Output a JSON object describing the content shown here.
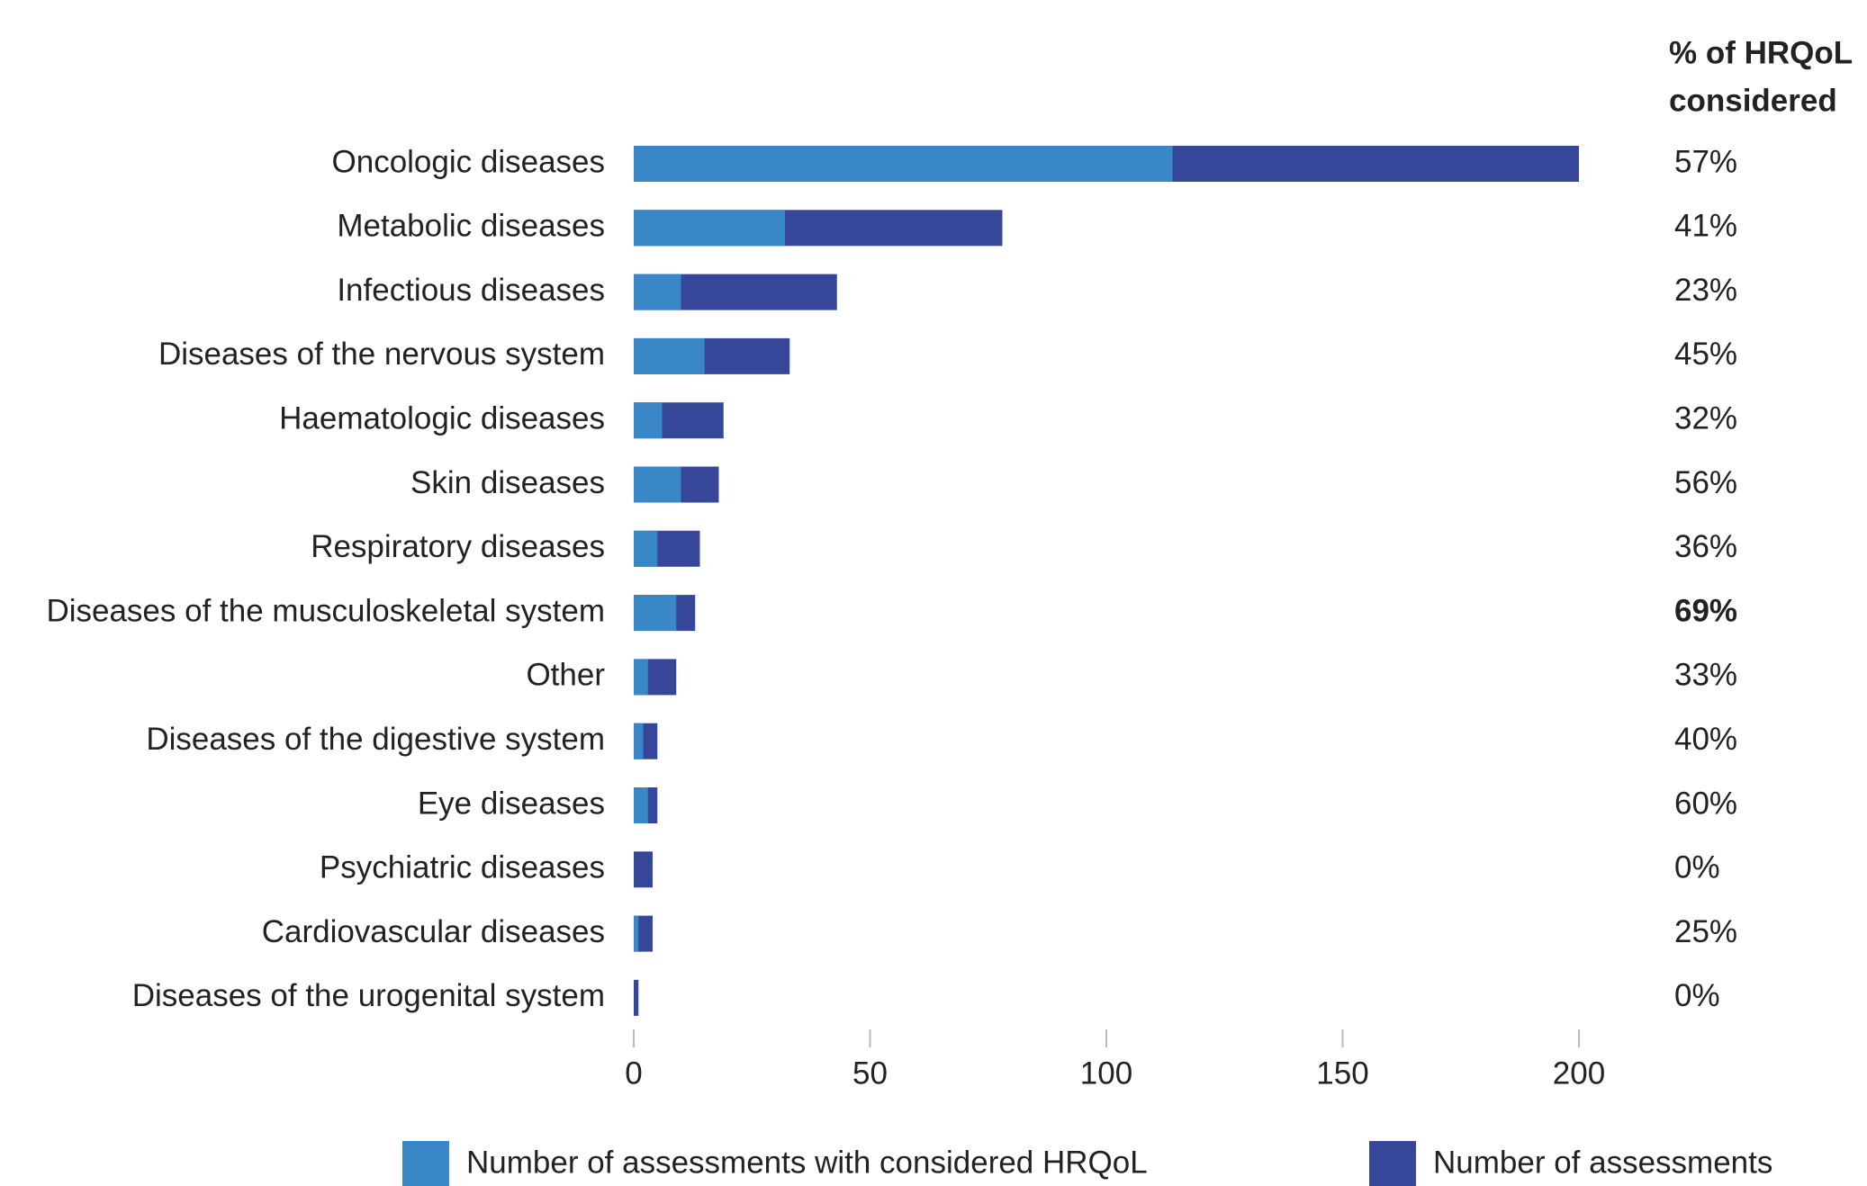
{
  "chart_data": {
    "type": "bar",
    "orientation": "horizontal",
    "overlay": true,
    "categories": [
      "Oncologic diseases",
      "Metabolic diseases",
      "Infectious diseases",
      "Diseases of the nervous system",
      "Haematologic diseases",
      "Skin diseases",
      "Respiratory diseases",
      "Diseases of the musculoskeletal system",
      "Other",
      "Diseases of the digestive system",
      "Eye diseases",
      "Psychiatric diseases",
      "Cardiovascular diseases",
      "Diseases of the urogenital system"
    ],
    "series": [
      {
        "name": "Number of assessments",
        "color": "#36479a",
        "values": [
          200,
          78,
          43,
          33,
          19,
          18,
          14,
          13,
          9,
          5,
          5,
          4,
          4,
          1
        ]
      },
      {
        "name": "Number of assessments with considered HRQoL",
        "color": "#3a87c8",
        "values": [
          114,
          32,
          10,
          15,
          6,
          10,
          5,
          9,
          3,
          2,
          3,
          0,
          1,
          0
        ]
      }
    ],
    "percent": {
      "header": [
        "% of HRQoL",
        "considered"
      ],
      "values": [
        57,
        41,
        23,
        45,
        32,
        56,
        36,
        69,
        33,
        40,
        60,
        0,
        25,
        0
      ],
      "value_labels": [
        "57%",
        "41%",
        "23%",
        "45%",
        "32%",
        "56%",
        "36%",
        "69%",
        "33%",
        "40%",
        "60%",
        "0%",
        "25%",
        "0%"
      ],
      "highlight_index": 7
    },
    "xlim": [
      0,
      200
    ],
    "xticks": [
      0,
      50,
      100,
      150,
      200
    ],
    "legend_order": [
      1,
      0
    ]
  }
}
